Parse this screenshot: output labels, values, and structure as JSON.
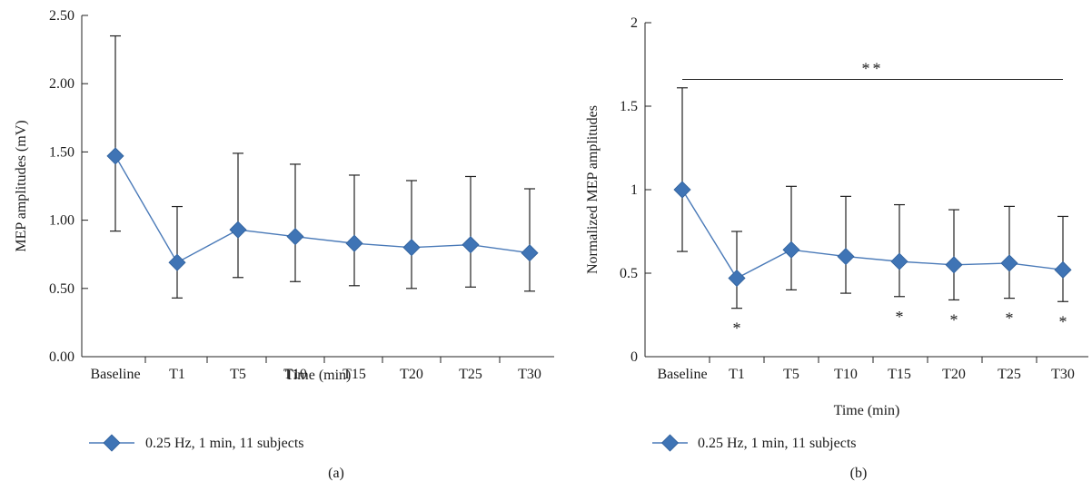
{
  "accent_color": "#4a7ab8",
  "marker_color": "#3f74b5",
  "chart_data": [
    {
      "panel_label": "(a)",
      "type": "line",
      "ylabel": "MEP amplitudes (mV)",
      "xlabel": "Time (min)",
      "ylim": [
        0,
        2.5
      ],
      "yticks": [
        0,
        0.5,
        1.0,
        1.5,
        2.0,
        2.5
      ],
      "ytick_labels": [
        "0.00",
        "0.50",
        "1.00",
        "1.50",
        "2.00",
        "2.50"
      ],
      "categories": [
        "Baseline",
        "T1",
        "T5",
        "T10",
        "T15",
        "T20",
        "T25",
        "T30"
      ],
      "series": [
        {
          "name": "0.25 Hz, 1 min, 11 subjects",
          "values": [
            1.47,
            0.69,
            0.93,
            0.88,
            0.83,
            0.8,
            0.82,
            0.76
          ],
          "err_upper": [
            2.35,
            1.1,
            1.49,
            1.41,
            1.33,
            1.29,
            1.32,
            1.23
          ],
          "err_lower": [
            0.92,
            0.43,
            0.58,
            0.55,
            0.52,
            0.5,
            0.51,
            0.48
          ]
        }
      ],
      "significance_marks": [],
      "bracket": null,
      "legend": "bottom-left"
    },
    {
      "panel_label": "(b)",
      "type": "line",
      "ylabel": "Normalized MEP amplitudes",
      "xlabel": "Time (min)",
      "ylim": [
        0,
        2
      ],
      "yticks": [
        0,
        0.5,
        1,
        1.5,
        2
      ],
      "ytick_labels": [
        "0",
        "0.5",
        "1",
        "1.5",
        "2"
      ],
      "categories": [
        "Baseline",
        "T1",
        "T5",
        "T10",
        "T15",
        "T20",
        "T25",
        "T30"
      ],
      "series": [
        {
          "name": "0.25 Hz, 1 min, 11 subjects",
          "values": [
            1.0,
            0.47,
            0.64,
            0.6,
            0.57,
            0.55,
            0.56,
            0.52
          ],
          "err_upper": [
            1.61,
            0.75,
            1.02,
            0.96,
            0.91,
            0.88,
            0.9,
            0.84
          ],
          "err_lower": [
            0.63,
            0.29,
            0.4,
            0.38,
            0.36,
            0.34,
            0.35,
            0.33
          ]
        }
      ],
      "significance_marks": [
        {
          "category": "T1",
          "text": "*"
        },
        {
          "category": "T15",
          "text": "*"
        },
        {
          "category": "T20",
          "text": "*"
        },
        {
          "category": "T25",
          "text": "*"
        },
        {
          "category": "T30",
          "text": "*"
        }
      ],
      "bracket": {
        "value": 1.66,
        "text": "**"
      },
      "legend": "bottom-left"
    }
  ]
}
